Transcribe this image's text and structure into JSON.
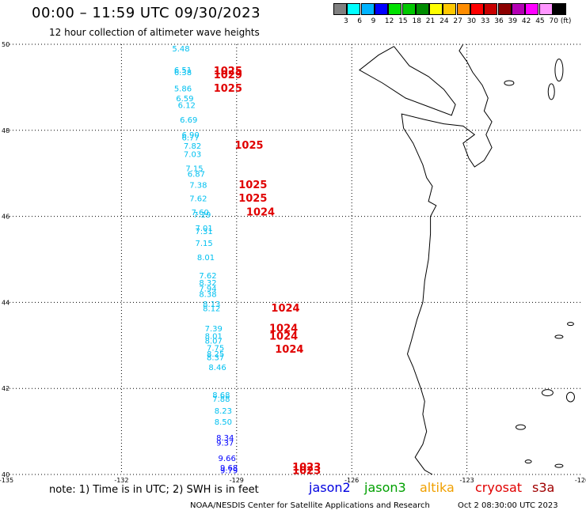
{
  "header": {
    "title": "00:00 – 11:59 UTC 09/30/2023",
    "subtitle": "12 hour collection of altimeter wave heights"
  },
  "legend": {
    "labels": [
      "3",
      "6",
      "9",
      "12",
      "15",
      "18",
      "21",
      "24",
      "27",
      "30",
      "33",
      "36",
      "39",
      "42",
      "45",
      "70 (ft)"
    ],
    "colors": [
      "#808080",
      "#00ffff",
      "#00b4ff",
      "#0000ff",
      "#00e000",
      "#00c800",
      "#008c00",
      "#ffff00",
      "#ffc800",
      "#ff8c00",
      "#ff0000",
      "#c80000",
      "#8c0000",
      "#b400b4",
      "#ff00ff",
      "#ff96ff",
      "#000000"
    ]
  },
  "map": {
    "lat_labels": [
      "50",
      "48",
      "46",
      "44",
      "42",
      "40"
    ],
    "lon_labels": [
      "-135",
      "-132",
      "-129",
      "-126",
      "-123",
      "-120"
    ],
    "wave_color_light": "#00c0f0",
    "wave_color_dark": "#0000ff",
    "pressure_color": "#e00000",
    "wave_points": [
      {
        "lat": 49.83,
        "lon": -130.45,
        "value": "5.48"
      },
      {
        "lat": 49.34,
        "lon": -130.4,
        "value": "6.51"
      },
      {
        "lat": 49.28,
        "lon": -130.4,
        "value": "6.38"
      },
      {
        "lat": 48.91,
        "lon": -130.4,
        "value": "5.86"
      },
      {
        "lat": 48.68,
        "lon": -130.35,
        "value": "6.59"
      },
      {
        "lat": 48.52,
        "lon": -130.3,
        "value": "6.12"
      },
      {
        "lat": 48.18,
        "lon": -130.25,
        "value": "6.69"
      },
      {
        "lat": 47.83,
        "lon": -130.2,
        "value": "6.90"
      },
      {
        "lat": 47.77,
        "lon": -130.2,
        "value": "6.77"
      },
      {
        "lat": 47.57,
        "lon": -130.15,
        "value": "7.82"
      },
      {
        "lat": 47.38,
        "lon": -130.15,
        "value": "7.03"
      },
      {
        "lat": 47.05,
        "lon": -130.1,
        "value": "7.15"
      },
      {
        "lat": 46.92,
        "lon": -130.05,
        "value": "6.87"
      },
      {
        "lat": 46.66,
        "lon": -130.0,
        "value": "7.38"
      },
      {
        "lat": 46.35,
        "lon": -130.0,
        "value": "7.62"
      },
      {
        "lat": 46.03,
        "lon": -129.95,
        "value": "7.60"
      },
      {
        "lat": 45.97,
        "lon": -129.9,
        "value": "7.29"
      },
      {
        "lat": 45.66,
        "lon": -129.85,
        "value": "7.01"
      },
      {
        "lat": 45.59,
        "lon": -129.85,
        "value": "7.31"
      },
      {
        "lat": 45.31,
        "lon": -129.85,
        "value": "7.15"
      },
      {
        "lat": 44.98,
        "lon": -129.8,
        "value": "8.01"
      },
      {
        "lat": 44.56,
        "lon": -129.75,
        "value": "7.62"
      },
      {
        "lat": 44.39,
        "lon": -129.75,
        "value": "8.32"
      },
      {
        "lat": 44.26,
        "lon": -129.75,
        "value": "7.94"
      },
      {
        "lat": 44.13,
        "lon": -129.75,
        "value": "8.38"
      },
      {
        "lat": 43.9,
        "lon": -129.65,
        "value": "8.13"
      },
      {
        "lat": 43.8,
        "lon": -129.65,
        "value": "8.12"
      },
      {
        "lat": 43.33,
        "lon": -129.6,
        "value": "7.39"
      },
      {
        "lat": 43.15,
        "lon": -129.6,
        "value": "8.01"
      },
      {
        "lat": 43.04,
        "lon": -129.6,
        "value": "8.07"
      },
      {
        "lat": 42.88,
        "lon": -129.55,
        "value": "7.75"
      },
      {
        "lat": 42.74,
        "lon": -129.55,
        "value": "8.25"
      },
      {
        "lat": 42.66,
        "lon": -129.55,
        "value": "8.37"
      },
      {
        "lat": 42.43,
        "lon": -129.5,
        "value": "8.46"
      },
      {
        "lat": 41.78,
        "lon": -129.4,
        "value": "8.68"
      },
      {
        "lat": 41.69,
        "lon": -129.4,
        "value": "7.88"
      },
      {
        "lat": 41.42,
        "lon": -129.35,
        "value": "8.23"
      },
      {
        "lat": 41.16,
        "lon": -129.35,
        "value": "8.50"
      },
      {
        "lat": 40.79,
        "lon": -129.3,
        "value": "8.34",
        "dark": true
      },
      {
        "lat": 40.67,
        "lon": -129.3,
        "value": "9.37",
        "dark": true
      },
      {
        "lat": 40.31,
        "lon": -129.25,
        "value": "9.66",
        "dark": true
      },
      {
        "lat": 40.09,
        "lon": -129.2,
        "value": "9.68",
        "dark": true
      },
      {
        "lat": 40.03,
        "lon": -129.2,
        "value": "9.79",
        "dark": true
      }
    ],
    "pressure_points": [
      {
        "lat": 49.3,
        "lon": -129.6,
        "value": "1025"
      },
      {
        "lat": 49.21,
        "lon": -129.6,
        "value": "1029"
      },
      {
        "lat": 48.9,
        "lon": -129.6,
        "value": "1025"
      },
      {
        "lat": 47.57,
        "lon": -129.05,
        "value": "1025"
      },
      {
        "lat": 46.65,
        "lon": -128.95,
        "value": "1025"
      },
      {
        "lat": 46.34,
        "lon": -128.95,
        "value": "1025"
      },
      {
        "lat": 46.02,
        "lon": -128.75,
        "value": "1024"
      },
      {
        "lat": 43.79,
        "lon": -128.1,
        "value": "1024"
      },
      {
        "lat": 43.32,
        "lon": -128.15,
        "value": "1024"
      },
      {
        "lat": 43.13,
        "lon": -128.15,
        "value": "1024"
      },
      {
        "lat": 42.83,
        "lon": -128.0,
        "value": "1024"
      },
      {
        "lat": 40.09,
        "lon": -127.55,
        "value": "1023"
      },
      {
        "lat": 40.01,
        "lon": -127.55,
        "value": "1023"
      }
    ]
  },
  "footer": {
    "note": "note: 1) Time is in UTC; 2) SWH is in feet",
    "missions": [
      {
        "name": "jason2",
        "color": "#0000e0"
      },
      {
        "name": "jason3",
        "color": "#00a000"
      },
      {
        "name": "altika",
        "color": "#f0a000"
      },
      {
        "name": "cryosat",
        "color": "#e00000"
      },
      {
        "name": "s3a",
        "color": "#a00000"
      }
    ],
    "credit": "NOAA/NESDIS Center for Satellite Applications and Research",
    "timestamp": "Oct  2 08:30:00 UTC 2023"
  }
}
